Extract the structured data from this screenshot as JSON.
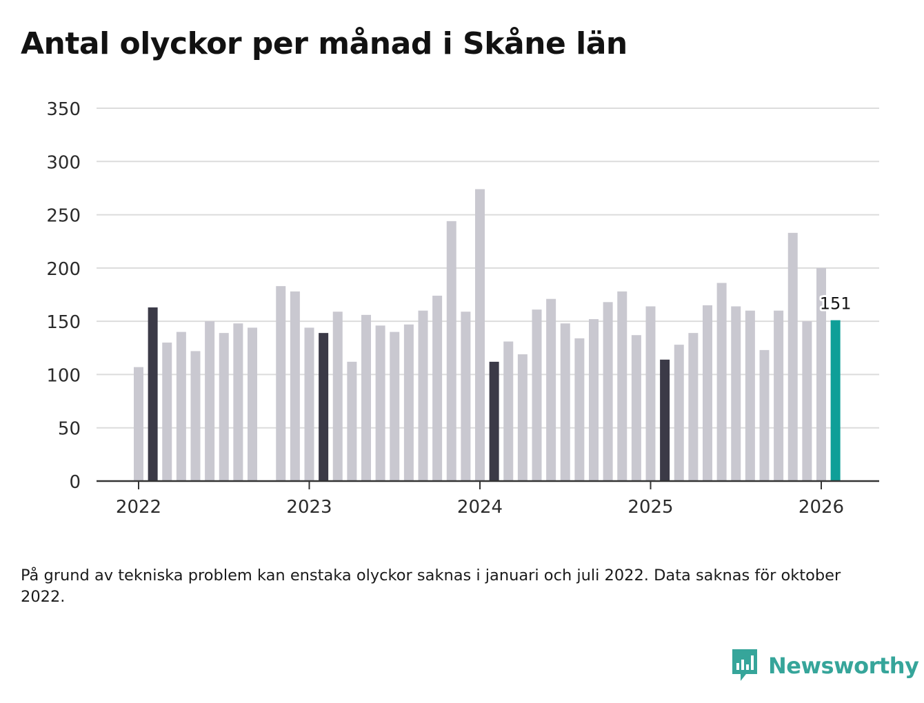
{
  "colors": {
    "bar_default": "#c9c8d0",
    "bar_january": "#3b3a47",
    "bar_latest": "#0f9f98",
    "grid": "#dcdcdc",
    "axis": "#333333",
    "text": "#121212",
    "brand": "#36a59a"
  },
  "header": {
    "title": "Antal olyckor per månad i Skåne län"
  },
  "chart_data": {
    "type": "bar",
    "title": "Antal olyckor per månad i Skåne län",
    "xlabel": "",
    "ylabel": "",
    "ylim": [
      0,
      350
    ],
    "y_ticks": [
      0,
      50,
      100,
      150,
      200,
      250,
      300,
      350
    ],
    "grid": true,
    "x_tick_labels": [
      "2022",
      "2023",
      "2024",
      "2025",
      "2026"
    ],
    "highlight_label": "151",
    "series": [
      {
        "name": "Antal olyckor",
        "months": [
          "2022-01",
          "2022-02",
          "2022-03",
          "2022-04",
          "2022-05",
          "2022-06",
          "2022-07",
          "2022-08",
          "2022-09",
          "2022-10",
          "2022-11",
          "2022-12",
          "2023-01",
          "2023-02",
          "2023-03",
          "2023-04",
          "2023-05",
          "2023-06",
          "2023-07",
          "2023-08",
          "2023-09",
          "2023-10",
          "2023-11",
          "2023-12",
          "2024-01",
          "2024-02",
          "2024-03",
          "2024-04",
          "2024-05",
          "2024-06",
          "2024-07",
          "2024-08",
          "2024-09",
          "2024-10",
          "2024-11",
          "2024-12",
          "2025-01",
          "2025-02",
          "2025-03",
          "2025-04",
          "2025-05",
          "2025-06",
          "2025-07",
          "2025-08",
          "2025-09",
          "2025-10",
          "2025-11",
          "2025-12",
          "2026-01",
          "2026-02"
        ],
        "values": [
          107,
          163,
          130,
          140,
          122,
          150,
          139,
          148,
          144,
          null,
          183,
          178,
          144,
          139,
          159,
          112,
          156,
          146,
          140,
          147,
          160,
          174,
          244,
          159,
          274,
          112,
          131,
          119,
          161,
          171,
          148,
          134,
          152,
          168,
          178,
          137,
          164,
          114,
          128,
          139,
          165,
          186,
          164,
          160,
          123,
          160,
          233,
          150,
          200,
          151
        ]
      }
    ]
  },
  "footnote": {
    "text": "På grund av tekniska problem kan enstaka olyckor saknas i januari och juli 2022. Data saknas för oktober 2022."
  },
  "branding": {
    "name": "Newsworthy",
    "icon": "newsworthy-bar-chart-icon"
  }
}
